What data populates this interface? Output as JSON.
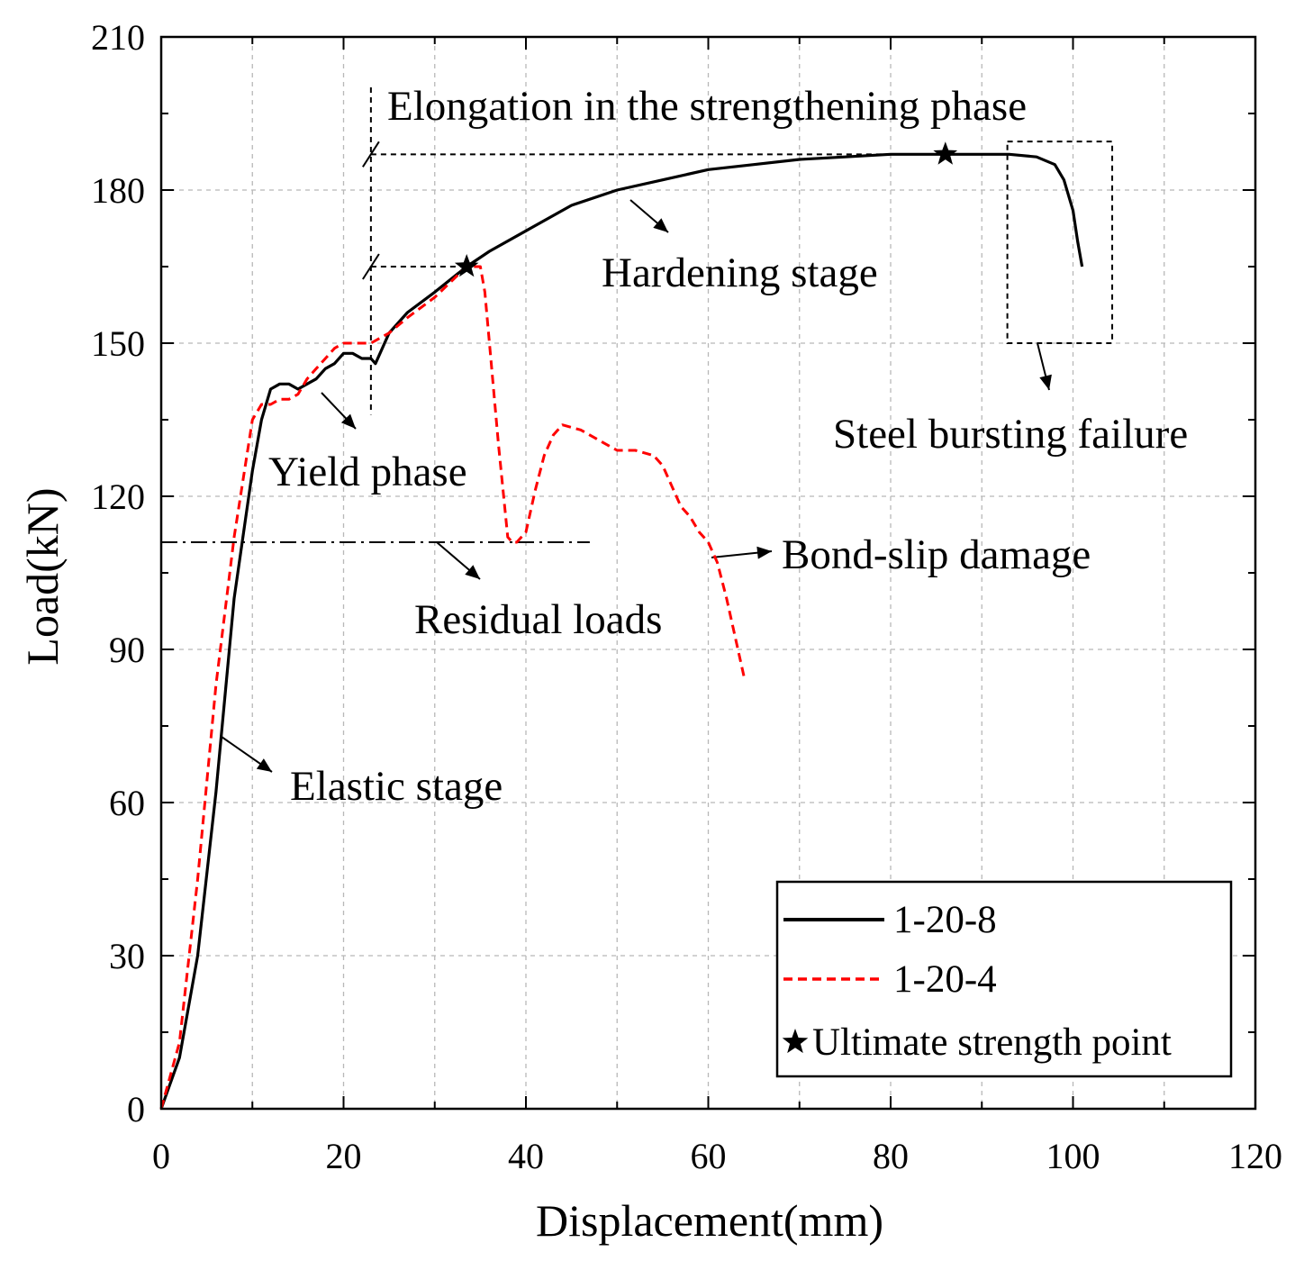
{
  "chart_data": {
    "type": "line",
    "xlabel": "Displacement(mm)",
    "ylabel": "Load(kN)",
    "xlim": [
      0,
      120
    ],
    "ylim": [
      0,
      210
    ],
    "xticks": [
      0,
      20,
      40,
      60,
      80,
      100,
      120
    ],
    "yticks": [
      0,
      30,
      60,
      90,
      120,
      150,
      180,
      210
    ],
    "grid": true,
    "legend_position": "bottom-right",
    "series": [
      {
        "name": "1-20-8",
        "style": "solid",
        "color": "#000000",
        "x": [
          0,
          2,
          4,
          6,
          8,
          10,
          11,
          12,
          13,
          14,
          15,
          16,
          17,
          18,
          19,
          20,
          21,
          22,
          23,
          23.5,
          24,
          25,
          27,
          30,
          33.5,
          36,
          40,
          45,
          50,
          55,
          60,
          65,
          70,
          75,
          80,
          86,
          90,
          93,
          96,
          98,
          99,
          100,
          100.5,
          101
        ],
        "y": [
          0,
          10,
          30,
          62,
          100,
          125,
          135,
          141,
          142,
          142,
          141,
          142,
          143,
          145,
          146,
          148,
          148,
          147,
          147,
          146,
          148,
          152,
          156,
          160,
          165,
          168,
          172,
          177,
          180,
          182,
          184,
          185,
          186,
          186.5,
          187,
          187,
          187,
          187,
          186.5,
          185,
          182,
          176,
          170,
          165
        ]
      },
      {
        "name": "1-20-4",
        "style": "dashed",
        "color": "#ff0000",
        "x": [
          0,
          2,
          4,
          6,
          8,
          10,
          11,
          12,
          13,
          14,
          15,
          16,
          17,
          18,
          19,
          20,
          21,
          22,
          23,
          25,
          27,
          30,
          33.5,
          35,
          35.5,
          36,
          37,
          38,
          38.5,
          39,
          40,
          41,
          42,
          43,
          44,
          46,
          48,
          50,
          52,
          54,
          55,
          56,
          57,
          58,
          59,
          60,
          61,
          62,
          63,
          64
        ],
        "y": [
          0,
          13,
          45,
          83,
          112,
          135,
          138,
          138,
          139,
          139,
          140,
          143,
          145,
          147,
          149,
          150,
          150,
          150,
          150,
          152,
          155,
          159,
          165,
          165,
          160,
          150,
          130,
          112,
          111,
          111,
          113,
          121,
          128,
          132,
          134,
          133,
          131,
          129,
          129,
          128,
          126,
          122,
          118,
          116,
          113,
          111,
          107,
          100,
          92,
          84
        ]
      }
    ],
    "ultimate_points": [
      {
        "series": "1-20-8",
        "x": 86,
        "y": 187
      },
      {
        "series": "1-20-4",
        "x": 33.5,
        "y": 165
      }
    ],
    "residual_load": 111,
    "annotations": {
      "elongation": "Elongation in the strengthening phase",
      "hardening": "Hardening stage",
      "yield": "Yield phase",
      "steel_bursting": "Steel bursting failure",
      "bond_slip": "Bond-slip damage",
      "residual": "Residual loads",
      "elastic": "Elastic stage"
    },
    "legend": {
      "series_1": "1-20-8",
      "series_2": "1-20-4",
      "marker": "Ultimate strength point"
    }
  }
}
